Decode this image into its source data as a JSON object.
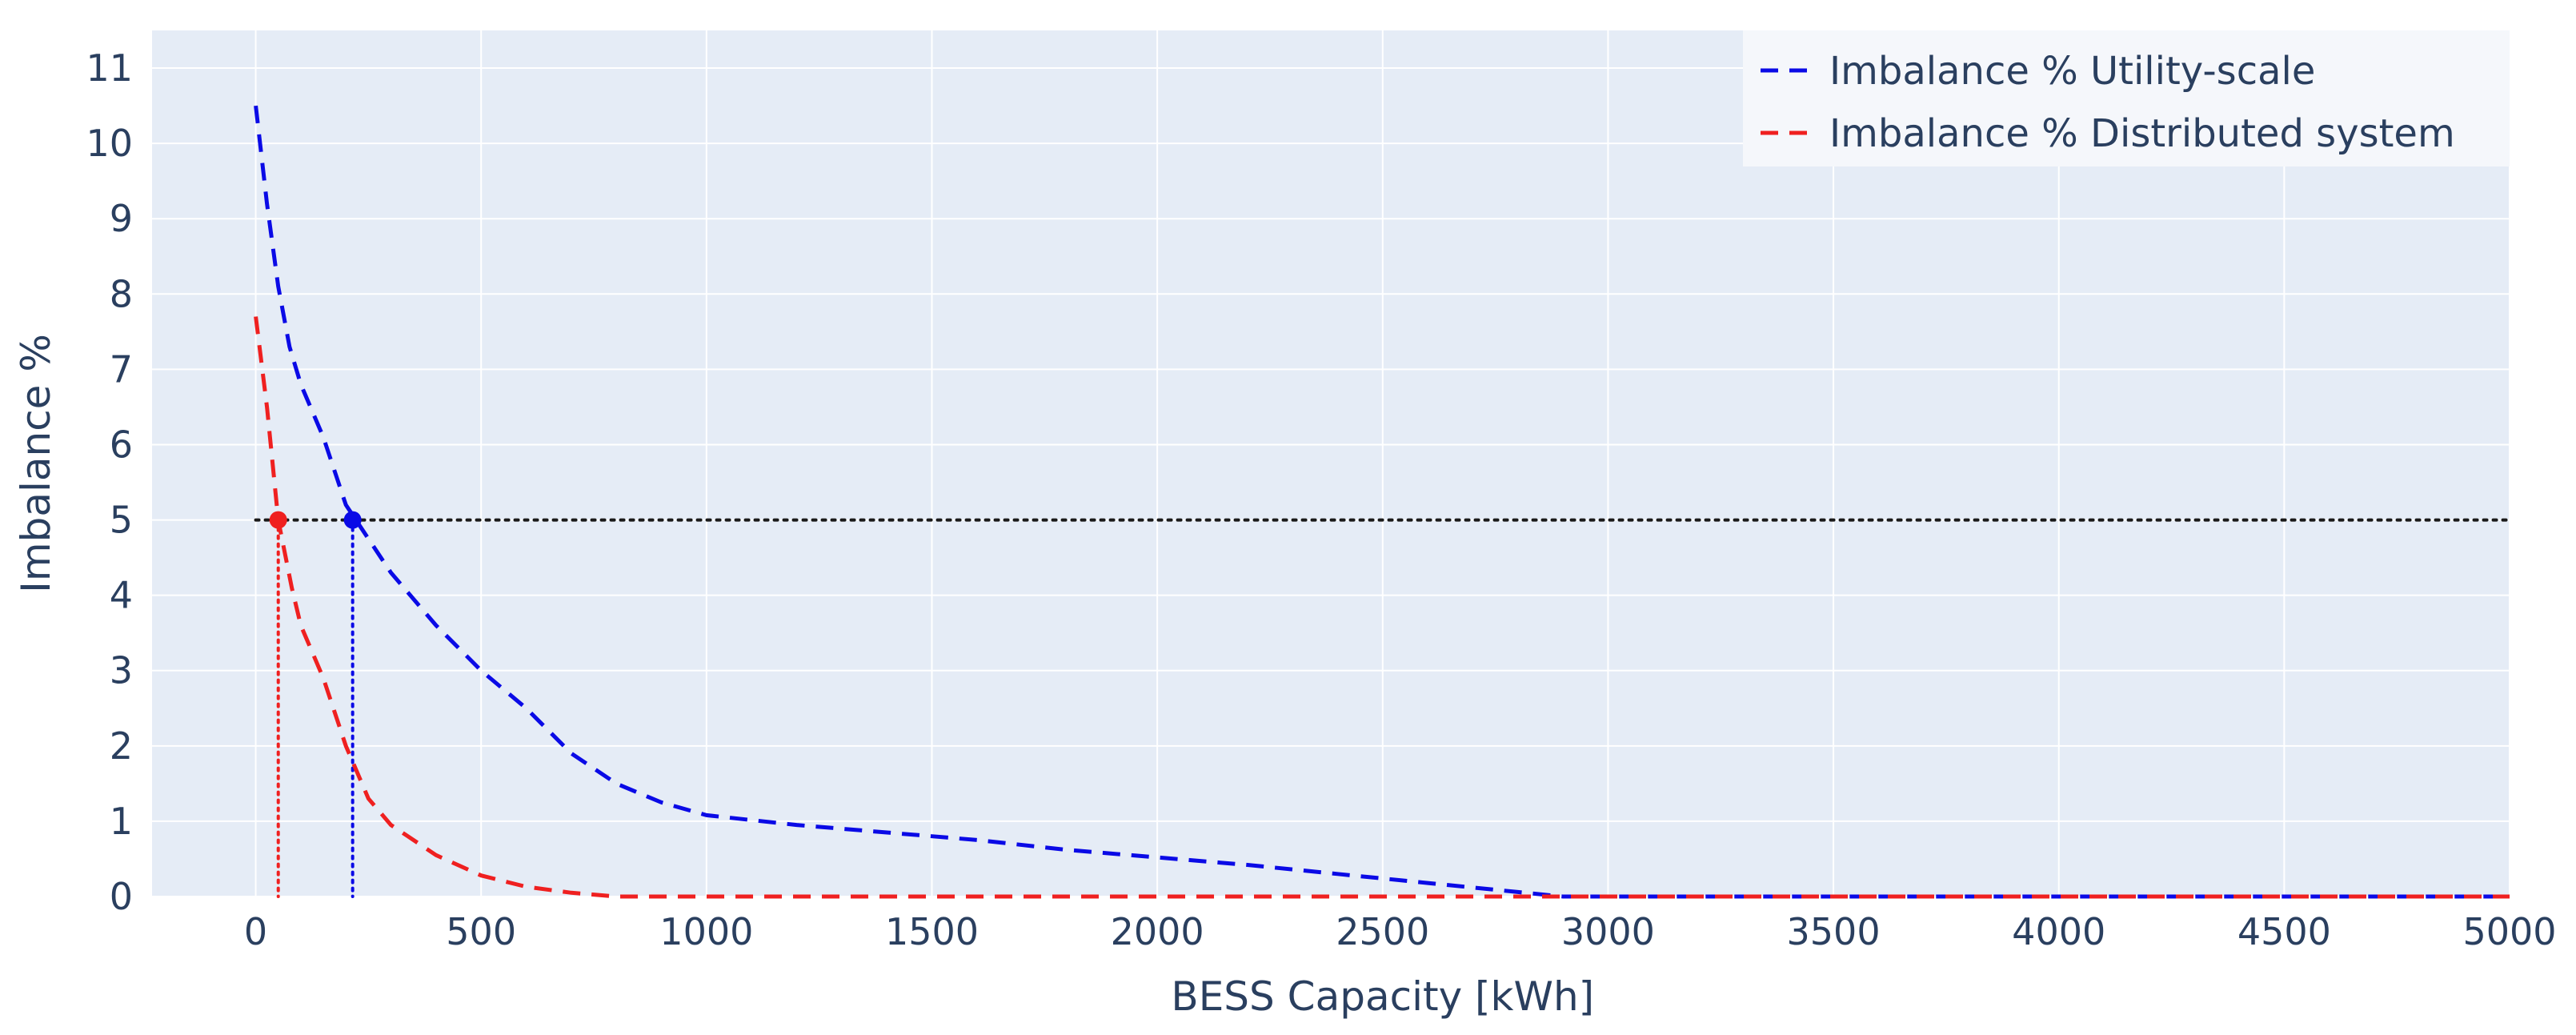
{
  "chart_data": {
    "type": "line",
    "xlabel": "BESS Capacity [kWh]",
    "ylabel": "Imbalance %",
    "xlim": [
      -230,
      5000
    ],
    "ylim": [
      0,
      11.5
    ],
    "x_ticks": [
      0,
      500,
      1000,
      1500,
      2000,
      2500,
      3000,
      3500,
      4000,
      4500,
      5000
    ],
    "y_ticks": [
      0,
      1,
      2,
      3,
      4,
      5,
      6,
      7,
      8,
      9,
      10,
      11
    ],
    "grid": true,
    "legend_position": "top-right",
    "series": [
      {
        "name": "Imbalance % Utility-scale",
        "color": "#0a0ae6",
        "style": "dashed",
        "points": [
          [
            0,
            10.5
          ],
          [
            25,
            9.2
          ],
          [
            50,
            8.1
          ],
          [
            75,
            7.3
          ],
          [
            100,
            6.8
          ],
          [
            150,
            6.1
          ],
          [
            200,
            5.2
          ],
          [
            300,
            4.3
          ],
          [
            400,
            3.6
          ],
          [
            500,
            3.0
          ],
          [
            600,
            2.5
          ],
          [
            700,
            1.9
          ],
          [
            800,
            1.5
          ],
          [
            900,
            1.25
          ],
          [
            1000,
            1.08
          ],
          [
            1200,
            0.95
          ],
          [
            1400,
            0.85
          ],
          [
            1600,
            0.75
          ],
          [
            1800,
            0.62
          ],
          [
            2000,
            0.52
          ],
          [
            2200,
            0.42
          ],
          [
            2400,
            0.3
          ],
          [
            2600,
            0.18
          ],
          [
            2800,
            0.06
          ],
          [
            2900,
            0.0
          ],
          [
            5000,
            0.0
          ]
        ]
      },
      {
        "name": "Imbalance % Distributed system",
        "color": "#ef2020",
        "style": "dashed",
        "points": [
          [
            0,
            7.7
          ],
          [
            25,
            6.5
          ],
          [
            50,
            5.0
          ],
          [
            80,
            4.1
          ],
          [
            100,
            3.6
          ],
          [
            150,
            2.9
          ],
          [
            200,
            2.0
          ],
          [
            250,
            1.3
          ],
          [
            300,
            0.95
          ],
          [
            400,
            0.55
          ],
          [
            500,
            0.28
          ],
          [
            600,
            0.13
          ],
          [
            700,
            0.05
          ],
          [
            800,
            0.0
          ],
          [
            5000,
            0.0
          ]
        ]
      }
    ],
    "threshold": {
      "y": 5,
      "color": "#1a1a1a",
      "style": "dotted"
    },
    "markers": [
      {
        "series": "Imbalance % Distributed system",
        "x": 50,
        "y": 5,
        "color": "#ef2020"
      },
      {
        "series": "Imbalance % Utility-scale",
        "x": 215,
        "y": 5,
        "color": "#0a0ae6"
      }
    ],
    "colors": {
      "plot_bg": "#e5ecf6",
      "grid": "#ffffff",
      "text": "#2a3f5f",
      "legend_bg": "#f5f7fb"
    }
  }
}
